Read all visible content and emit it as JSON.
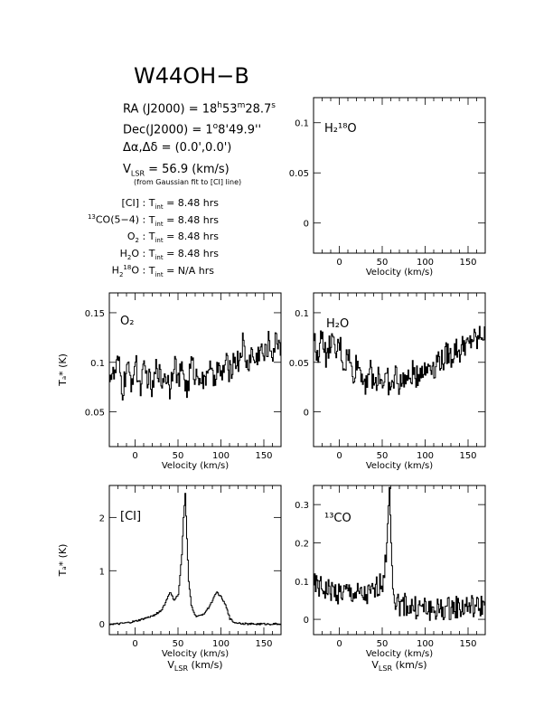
{
  "header": {
    "title": "W44OH−B",
    "ra_label": "RA (J2000) = ",
    "ra_h": "18",
    "ra_h_unit": "h",
    "ra_m": "53",
    "ra_m_unit": "m",
    "ra_s": "28.7",
    "ra_s_unit": "s",
    "dec_label": "Dec(J2000) = ",
    "dec_d": "1",
    "dec_d_unit": "o",
    "dec_rest": "8'49.9''",
    "offset": "Δα,Δδ = (0.0',0.0')",
    "vlsr_main": "V",
    "vlsr_sub": "LSR",
    "vlsr_value": " = 56.9 (km/s)",
    "vlsr_note": "(from Gaussian fit to [CI] line)"
  },
  "integration": [
    {
      "pre": "",
      "line": "[CI]",
      "sup": "",
      "sub": "",
      "post": "",
      "tlabel": "T",
      "tsub": "int",
      "value": " = 8.48 hrs"
    },
    {
      "pre": "13",
      "line": "CO(5−4)",
      "sup": "",
      "sub": "",
      "post": "",
      "tlabel": "T",
      "tsub": "int",
      "value": " = 8.48 hrs"
    },
    {
      "pre": "",
      "line": "O",
      "sup": "",
      "sub": "2",
      "post": "",
      "tlabel": "T",
      "tsub": "int",
      "value": " = 8.48 hrs"
    },
    {
      "pre": "",
      "line": "H",
      "sup": "",
      "sub": "2",
      "post": "O",
      "tlabel": "T",
      "tsub": "int",
      "value": " = 8.48 hrs"
    },
    {
      "pre": "",
      "line": "H",
      "sup": "18",
      "sub": "2",
      "post": "O",
      "tlabel": "T",
      "tsub": "int",
      "value": " = N/A hrs"
    }
  ],
  "chart_data": [
    {
      "id": "h2o18",
      "type": "line",
      "title": "H₂¹⁸O",
      "xlabel": "Velocity (km/s)",
      "ylabel": "",
      "xlim": [
        -30,
        170
      ],
      "ylim": [
        -0.03,
        0.125
      ],
      "xticks": [
        0,
        50,
        100,
        150
      ],
      "yticks": [
        0,
        0.05,
        0.1
      ],
      "ytick_labels": [
        "0",
        "0.05",
        "0.1"
      ],
      "series": []
    },
    {
      "id": "o2",
      "type": "line",
      "title": "O₂",
      "xlabel": "Velocity (km/s)",
      "ylabel": "Tₐ* (K)",
      "xlim": [
        -30,
        170
      ],
      "ylim": [
        0.015,
        0.17
      ],
      "xticks": [
        0,
        50,
        100,
        150
      ],
      "yticks": [
        0.05,
        0.1,
        0.15
      ],
      "ytick_labels": [
        "0.05",
        "0.1",
        "0.15"
      ],
      "series": [
        {
          "x": [
            -30,
            -25,
            -20,
            -15,
            -10,
            -5,
            0,
            5,
            10,
            15,
            20,
            25,
            30,
            35,
            40,
            45,
            50,
            55,
            60,
            65,
            70,
            75,
            80,
            85,
            90,
            95,
            100,
            105,
            110,
            115,
            120,
            125,
            130,
            135,
            140,
            145,
            150,
            155,
            160,
            165,
            170
          ],
          "y": [
            0.09,
            0.085,
            0.1,
            0.07,
            0.095,
            0.08,
            0.1,
            0.075,
            0.09,
            0.085,
            0.07,
            0.1,
            0.08,
            0.09,
            0.075,
            0.105,
            0.08,
            0.095,
            0.07,
            0.1,
            0.085,
            0.09,
            0.075,
            0.1,
            0.08,
            0.095,
            0.085,
            0.1,
            0.09,
            0.105,
            0.1,
            0.12,
            0.095,
            0.11,
            0.1,
            0.115,
            0.105,
            0.12,
            0.11,
            0.125,
            0.115
          ]
        }
      ]
    },
    {
      "id": "h2o",
      "type": "line",
      "title": "H₂O",
      "xlabel": "Velocity (km/s)",
      "ylabel": "",
      "xlim": [
        -30,
        170
      ],
      "ylim": [
        -0.035,
        0.12
      ],
      "xticks": [
        0,
        50,
        100,
        150
      ],
      "yticks": [
        0,
        0.05,
        0.1
      ],
      "ytick_labels": [
        "0",
        "0.05",
        "0.1"
      ],
      "series": [
        {
          "x": [
            -30,
            -25,
            -20,
            -15,
            -10,
            -5,
            0,
            5,
            10,
            15,
            20,
            25,
            30,
            35,
            40,
            45,
            50,
            55,
            60,
            65,
            70,
            75,
            80,
            85,
            90,
            95,
            100,
            105,
            110,
            115,
            120,
            125,
            130,
            135,
            140,
            145,
            150,
            155,
            160,
            165,
            170
          ],
          "y": [
            0.07,
            0.06,
            0.08,
            0.05,
            0.075,
            0.055,
            0.07,
            0.045,
            0.06,
            0.035,
            0.05,
            0.04,
            0.03,
            0.045,
            0.025,
            0.04,
            0.03,
            0.035,
            0.02,
            0.04,
            0.025,
            0.035,
            0.03,
            0.04,
            0.035,
            0.045,
            0.04,
            0.05,
            0.045,
            0.055,
            0.05,
            0.06,
            0.055,
            0.065,
            0.06,
            0.07,
            0.065,
            0.075,
            0.07,
            0.08,
            0.075
          ]
        }
      ]
    },
    {
      "id": "ci",
      "type": "line",
      "title": "[CI]",
      "xlabel": "Velocity (km/s)",
      "xlabel2_main": "V",
      "xlabel2_sub": "LSR",
      "xlabel2_rest": " (km/s)",
      "ylabel": "Tₐ* (K)",
      "xlim": [
        -30,
        170
      ],
      "ylim": [
        -0.2,
        2.6
      ],
      "xticks": [
        0,
        50,
        100,
        150
      ],
      "yticks": [
        0,
        1,
        2
      ],
      "ytick_labels": [
        "0",
        "1",
        "2"
      ],
      "series": [
        {
          "x": [
            -30,
            -20,
            -10,
            0,
            10,
            20,
            30,
            35,
            40,
            45,
            50,
            52,
            54,
            56,
            58,
            60,
            62,
            65,
            70,
            75,
            80,
            85,
            90,
            95,
            100,
            105,
            110,
            115,
            120,
            130,
            140,
            150,
            160,
            170
          ],
          "y": [
            0,
            0,
            0.02,
            0.05,
            0.1,
            0.15,
            0.25,
            0.4,
            0.6,
            0.45,
            0.55,
            0.9,
            1.3,
            2.0,
            2.45,
            1.6,
            0.8,
            0.35,
            0.15,
            0.15,
            0.2,
            0.3,
            0.45,
            0.6,
            0.5,
            0.35,
            0.1,
            0.03,
            0.02,
            0,
            0,
            0,
            0,
            0
          ]
        }
      ]
    },
    {
      "id": "co13",
      "type": "line",
      "title": "¹³CO",
      "xlabel": "Velocity (km/s)",
      "xlabel2_main": "V",
      "xlabel2_sub": "LSR",
      "xlabel2_rest": " (km/s)",
      "ylabel": "",
      "xlim": [
        -30,
        170
      ],
      "ylim": [
        -0.04,
        0.35
      ],
      "xticks": [
        0,
        50,
        100,
        150
      ],
      "yticks": [
        0,
        0.1,
        0.2,
        0.3
      ],
      "ytick_labels": [
        "0",
        "0.1",
        "0.2",
        "0.3"
      ],
      "series": [
        {
          "x": [
            -30,
            -20,
            -10,
            0,
            10,
            20,
            30,
            40,
            45,
            50,
            54,
            56,
            58,
            60,
            62,
            65,
            70,
            80,
            90,
            100,
            110,
            120,
            130,
            140,
            150,
            160,
            170
          ],
          "y": [
            0.09,
            0.08,
            0.075,
            0.07,
            0.07,
            0.065,
            0.06,
            0.07,
            0.09,
            0.1,
            0.15,
            0.25,
            0.345,
            0.2,
            0.08,
            0.05,
            0.04,
            0.035,
            0.03,
            0.03,
            0.025,
            0.025,
            0.03,
            0.03,
            0.035,
            0.03,
            0.04
          ]
        }
      ]
    }
  ]
}
